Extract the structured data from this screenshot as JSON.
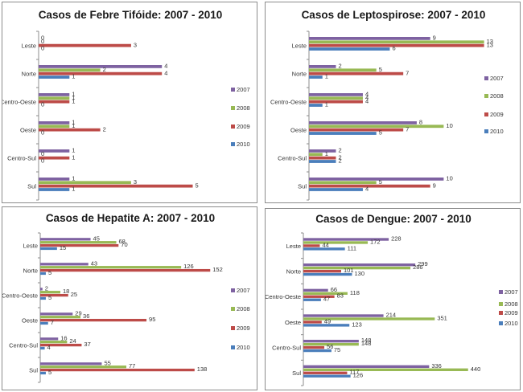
{
  "colors": {
    "2007": "#7e62a1",
    "2008": "#98b954",
    "2009": "#bd4b48",
    "2010": "#4a7ebb"
  },
  "chart_data": [
    {
      "type": "bar",
      "orientation": "horizontal",
      "title": "Casos de Febre Tifóide: 2007 - 2010",
      "categories": [
        "Leste",
        "Norte",
        "Centro-Oeste",
        "Oeste",
        "Centro-Sul",
        "Sul"
      ],
      "series": [
        {
          "name": "2007",
          "values": [
            0,
            4,
            1,
            1,
            1,
            1
          ]
        },
        {
          "name": "2008",
          "values": [
            0,
            2,
            1,
            1,
            0,
            3
          ]
        },
        {
          "name": "2009",
          "values": [
            3,
            4,
            1,
            2,
            1,
            5
          ]
        },
        {
          "name": "2010",
          "values": [
            0,
            1,
            0,
            0,
            0,
            1
          ]
        }
      ],
      "xlim": [
        0,
        5.3
      ],
      "legend": "right",
      "grid": false
    },
    {
      "type": "bar",
      "orientation": "horizontal",
      "title": "Casos de Leptospirose: 2007 - 2010",
      "categories": [
        "Leste",
        "Norte",
        "Centro-Oeste",
        "Oeste",
        "Centro-Sul",
        "Sul"
      ],
      "series": [
        {
          "name": "2007",
          "values": [
            9,
            2,
            4,
            8,
            2,
            10
          ]
        },
        {
          "name": "2008",
          "values": [
            13,
            5,
            4,
            10,
            1,
            5
          ]
        },
        {
          "name": "2009",
          "values": [
            13,
            7,
            4,
            7,
            2,
            9
          ]
        },
        {
          "name": "2010",
          "values": [
            6,
            1,
            1,
            5,
            2,
            4
          ]
        }
      ],
      "xlim": [
        0,
        13.5
      ],
      "legend": "right",
      "grid": false
    },
    {
      "type": "bar",
      "orientation": "horizontal",
      "title": "Casos de Hepatite A: 2007 - 2010",
      "categories": [
        "Leste",
        "Norte",
        "Centro-Oeste",
        "Oeste",
        "Centro-Sul",
        "Sul"
      ],
      "series": [
        {
          "name": "2007",
          "values": [
            45,
            43,
            2,
            29,
            16,
            55
          ]
        },
        {
          "name": "2008",
          "values": [
            68,
            126,
            18,
            36,
            24,
            77
          ]
        },
        {
          "name": "2009",
          "values": [
            70,
            152,
            25,
            95,
            37,
            138
          ]
        },
        {
          "name": "2010",
          "values": [
            15,
            5,
            5,
            7,
            4,
            5
          ]
        }
      ],
      "xlim": [
        0,
        159
      ],
      "legend": "right",
      "grid": false
    },
    {
      "type": "bar",
      "orientation": "horizontal",
      "title": "Casos de Dengue: 2007 - 2010",
      "categories": [
        "Leste",
        "Norte",
        "Centro-Oeste",
        "Oeste",
        "Centro-Sul",
        "Sul"
      ],
      "series": [
        {
          "name": "2007",
          "values": [
            228,
            299,
            66,
            214,
            148,
            336
          ]
        },
        {
          "name": "2008",
          "values": [
            172,
            286,
            118,
            351,
            148,
            440
          ]
        },
        {
          "name": "2009",
          "values": [
            44,
            101,
            83,
            49,
            56,
            117
          ]
        },
        {
          "name": "2010",
          "values": [
            111,
            130,
            47,
            123,
            75,
            126
          ]
        }
      ],
      "xlim": [
        0,
        447
      ],
      "legend": "right",
      "grid": false
    }
  ]
}
